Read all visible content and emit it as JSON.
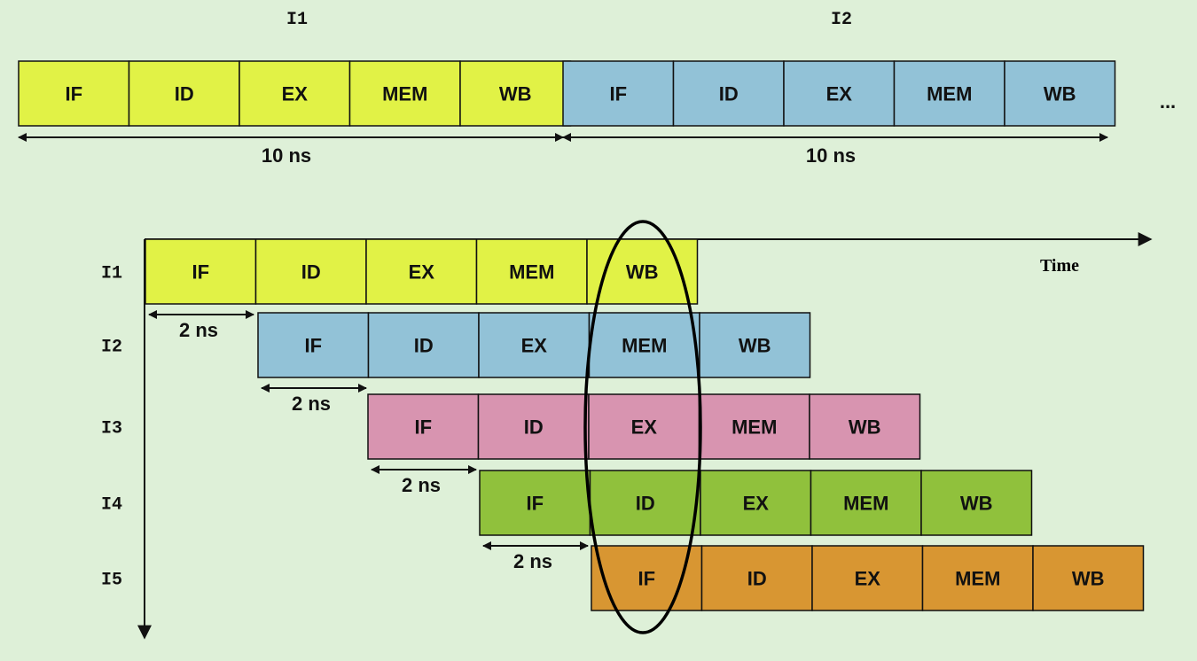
{
  "sequential": {
    "instructions": [
      {
        "label": "I1",
        "color": "#e1f246",
        "stages": [
          "IF",
          "ID",
          "EX",
          "MEM",
          "WB"
        ],
        "duration": "10 ns"
      },
      {
        "label": "I2",
        "color": "#92c2d7",
        "stages": [
          "IF",
          "ID",
          "EX",
          "MEM",
          "WB"
        ],
        "duration": "10 ns"
      }
    ],
    "continuation": "..."
  },
  "pipelined": {
    "axis_label": "Time",
    "rows": [
      {
        "label": "I1",
        "color": "#e1f246",
        "stages": [
          "IF",
          "ID",
          "EX",
          "MEM",
          "WB"
        ],
        "offset_label": "2 ns"
      },
      {
        "label": "I2",
        "color": "#92c2d7",
        "stages": [
          "IF",
          "ID",
          "EX",
          "MEM",
          "WB"
        ],
        "offset_label": "2 ns"
      },
      {
        "label": "I3",
        "color": "#d894b0",
        "stages": [
          "IF",
          "ID",
          "EX",
          "MEM",
          "WB"
        ],
        "offset_label": "2 ns"
      },
      {
        "label": "I4",
        "color": "#90c13c",
        "stages": [
          "IF",
          "ID",
          "EX",
          "MEM",
          "WB"
        ],
        "offset_label": "2 ns"
      },
      {
        "label": "I5",
        "color": "#d89632",
        "stages": [
          "IF",
          "ID",
          "EX",
          "MEM",
          "WB"
        ]
      }
    ]
  },
  "colors": {
    "stroke": "#111111",
    "background": "#def0d8"
  }
}
